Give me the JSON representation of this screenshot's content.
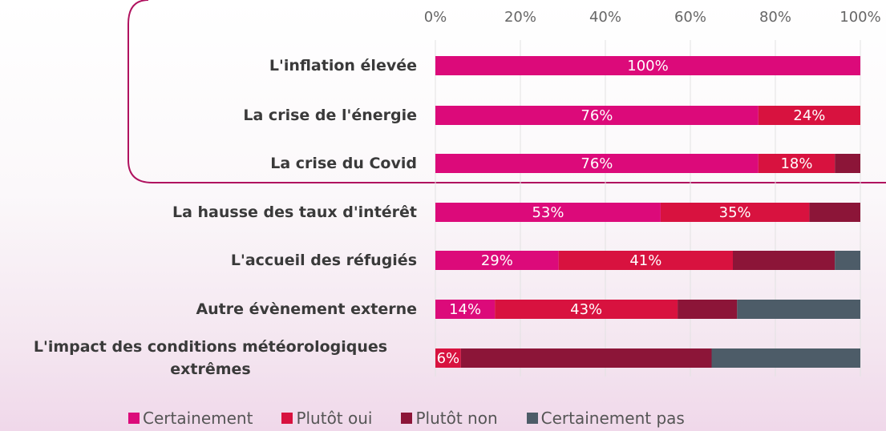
{
  "chart_data": {
    "type": "stacked-bar-horizontal",
    "categories": [
      "L'inflation élevée",
      "La crise de l'énergie",
      "La crise du Covid",
      "La hausse des taux d'intérêt",
      "L'accueil des réfugiés",
      "Autre évènement externe",
      "L'impact des conditions météorologiques extrêmes"
    ],
    "series": [
      {
        "name": "Certainement",
        "color": "#dc0a7a",
        "values": [
          100,
          76,
          76,
          53,
          29,
          14,
          0
        ],
        "value_labels": [
          "100%",
          "76%",
          "76%",
          "53%",
          "29%",
          "14%",
          null
        ]
      },
      {
        "name": "Plutôt oui",
        "color": "#d8123f",
        "values": [
          0,
          24,
          18,
          35,
          41,
          43,
          6
        ],
        "value_labels": [
          null,
          "24%",
          "18%",
          "35%",
          "41%",
          "43%",
          "6%"
        ]
      },
      {
        "name": "Plutôt non",
        "color": "#8c1538",
        "values": [
          0,
          0,
          6,
          12,
          24,
          14,
          59
        ]
      },
      {
        "name": "Certainement pas",
        "color": "#4d5c68",
        "values": [
          0,
          0,
          0,
          0,
          6,
          29,
          35
        ]
      }
    ],
    "xlim": [
      0,
      100
    ],
    "xticks": [
      {
        "value": 0,
        "label": "0%"
      },
      {
        "value": 20,
        "label": "20%"
      },
      {
        "value": 40,
        "label": "40%"
      },
      {
        "value": 60,
        "label": "60%"
      },
      {
        "value": 80,
        "label": "80%"
      },
      {
        "value": 100,
        "label": "100%"
      }
    ],
    "grid": true
  }
}
